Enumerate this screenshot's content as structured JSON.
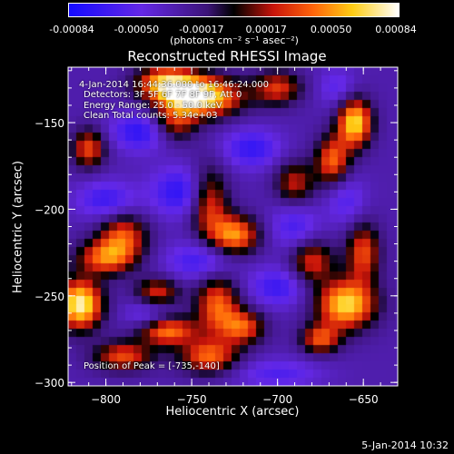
{
  "chart_data": {
    "type": "heatmap",
    "title": "Reconstructed RHESSI Image",
    "xlabel": "Heliocentric X (arcsec)",
    "ylabel": "Heliocentric Y (arcsec)",
    "xlim": [
      -822,
      -630
    ],
    "ylim": [
      -302,
      -118
    ],
    "xticks": [
      -800,
      -750,
      -700,
      -650
    ],
    "yticks": [
      -150,
      -200,
      -250,
      -300
    ],
    "colorbar": {
      "ticks": [
        "-0.00084",
        "-0.00050",
        "-0.00017",
        "0.00017",
        "0.00050",
        "0.00084"
      ],
      "range": [
        -0.00084,
        0.00084
      ],
      "units_label": "(photons cm⁻² s⁻¹ asec⁻²)"
    },
    "annotations": {
      "time_range": "4-Jan-2014 16:44:36.000 to 16:46:24.000",
      "detectors": "Detectors: 3F 5F 6F 7F 8F 9F, Att 0",
      "energy": "Energy Range: 25.0 - 50.0 keV",
      "algorithm": "Clean     Total counts: 5.34e+03",
      "peak": "Position of Peak = [-735,-140]"
    },
    "peak": {
      "x": -735,
      "y": -140
    },
    "bright_regions": [
      {
        "x": -745,
        "y": -135,
        "amp": 1.0,
        "sx": 16,
        "sy": 8
      },
      {
        "x": -765,
        "y": -127,
        "amp": 0.7,
        "sx": 12,
        "sy": 7
      },
      {
        "x": -655,
        "y": -150,
        "amp": 0.85,
        "sx": 7,
        "sy": 10
      },
      {
        "x": -668,
        "y": -172,
        "amp": 0.6,
        "sx": 7,
        "sy": 10
      },
      {
        "x": -740,
        "y": -195,
        "amp": 0.6,
        "sx": 8,
        "sy": 14
      },
      {
        "x": -725,
        "y": -215,
        "amp": 0.7,
        "sx": 10,
        "sy": 8
      },
      {
        "x": -810,
        "y": -165,
        "amp": 0.55,
        "sx": 7,
        "sy": 8
      },
      {
        "x": -790,
        "y": -215,
        "amp": 0.55,
        "sx": 10,
        "sy": 9
      },
      {
        "x": -800,
        "y": -228,
        "amp": 0.6,
        "sx": 12,
        "sy": 7
      },
      {
        "x": -815,
        "y": -255,
        "amp": 0.95,
        "sx": 9,
        "sy": 10
      },
      {
        "x": -770,
        "y": -248,
        "amp": 0.5,
        "sx": 9,
        "sy": 6
      },
      {
        "x": -765,
        "y": -270,
        "amp": 0.7,
        "sx": 12,
        "sy": 6
      },
      {
        "x": -735,
        "y": -255,
        "amp": 0.6,
        "sx": 9,
        "sy": 12
      },
      {
        "x": -720,
        "y": -268,
        "amp": 0.55,
        "sx": 9,
        "sy": 7
      },
      {
        "x": -740,
        "y": -285,
        "amp": 0.6,
        "sx": 12,
        "sy": 7
      },
      {
        "x": -790,
        "y": -285,
        "amp": 0.55,
        "sx": 12,
        "sy": 6
      },
      {
        "x": -660,
        "y": -255,
        "amp": 0.85,
        "sx": 12,
        "sy": 10
      },
      {
        "x": -680,
        "y": -230,
        "amp": 0.5,
        "sx": 9,
        "sy": 9
      },
      {
        "x": -650,
        "y": -225,
        "amp": 0.55,
        "sx": 7,
        "sy": 12
      },
      {
        "x": -675,
        "y": -275,
        "amp": 0.55,
        "sx": 8,
        "sy": 6
      },
      {
        "x": -700,
        "y": -130,
        "amp": 0.5,
        "sx": 10,
        "sy": 7
      },
      {
        "x": -690,
        "y": -185,
        "amp": 0.45,
        "sx": 8,
        "sy": 9
      },
      {
        "x": -760,
        "y": -150,
        "amp": 0.45,
        "sx": 9,
        "sy": 8
      }
    ],
    "dark_regions": [
      {
        "x": -780,
        "y": -155,
        "amp": 0.95,
        "sx": 12,
        "sy": 8
      },
      {
        "x": -800,
        "y": -195,
        "amp": 0.8,
        "sx": 12,
        "sy": 8
      },
      {
        "x": -755,
        "y": -190,
        "amp": 1.0,
        "sx": 13,
        "sy": 10
      },
      {
        "x": -715,
        "y": -165,
        "amp": 0.85,
        "sx": 12,
        "sy": 8
      },
      {
        "x": -690,
        "y": -210,
        "amp": 0.7,
        "sx": 10,
        "sy": 10
      },
      {
        "x": -745,
        "y": -230,
        "amp": 0.8,
        "sx": 14,
        "sy": 8
      },
      {
        "x": -700,
        "y": -245,
        "amp": 0.8,
        "sx": 12,
        "sy": 8
      },
      {
        "x": -775,
        "y": -262,
        "amp": 0.7,
        "sx": 10,
        "sy": 7
      },
      {
        "x": -700,
        "y": -295,
        "amp": 0.6,
        "sx": 18,
        "sy": 6
      },
      {
        "x": -660,
        "y": -195,
        "amp": 0.6,
        "sx": 8,
        "sy": 10
      },
      {
        "x": -665,
        "y": -130,
        "amp": 0.55,
        "sx": 8,
        "sy": 8
      }
    ]
  },
  "timestamp": "5-Jan-2014 10:32"
}
